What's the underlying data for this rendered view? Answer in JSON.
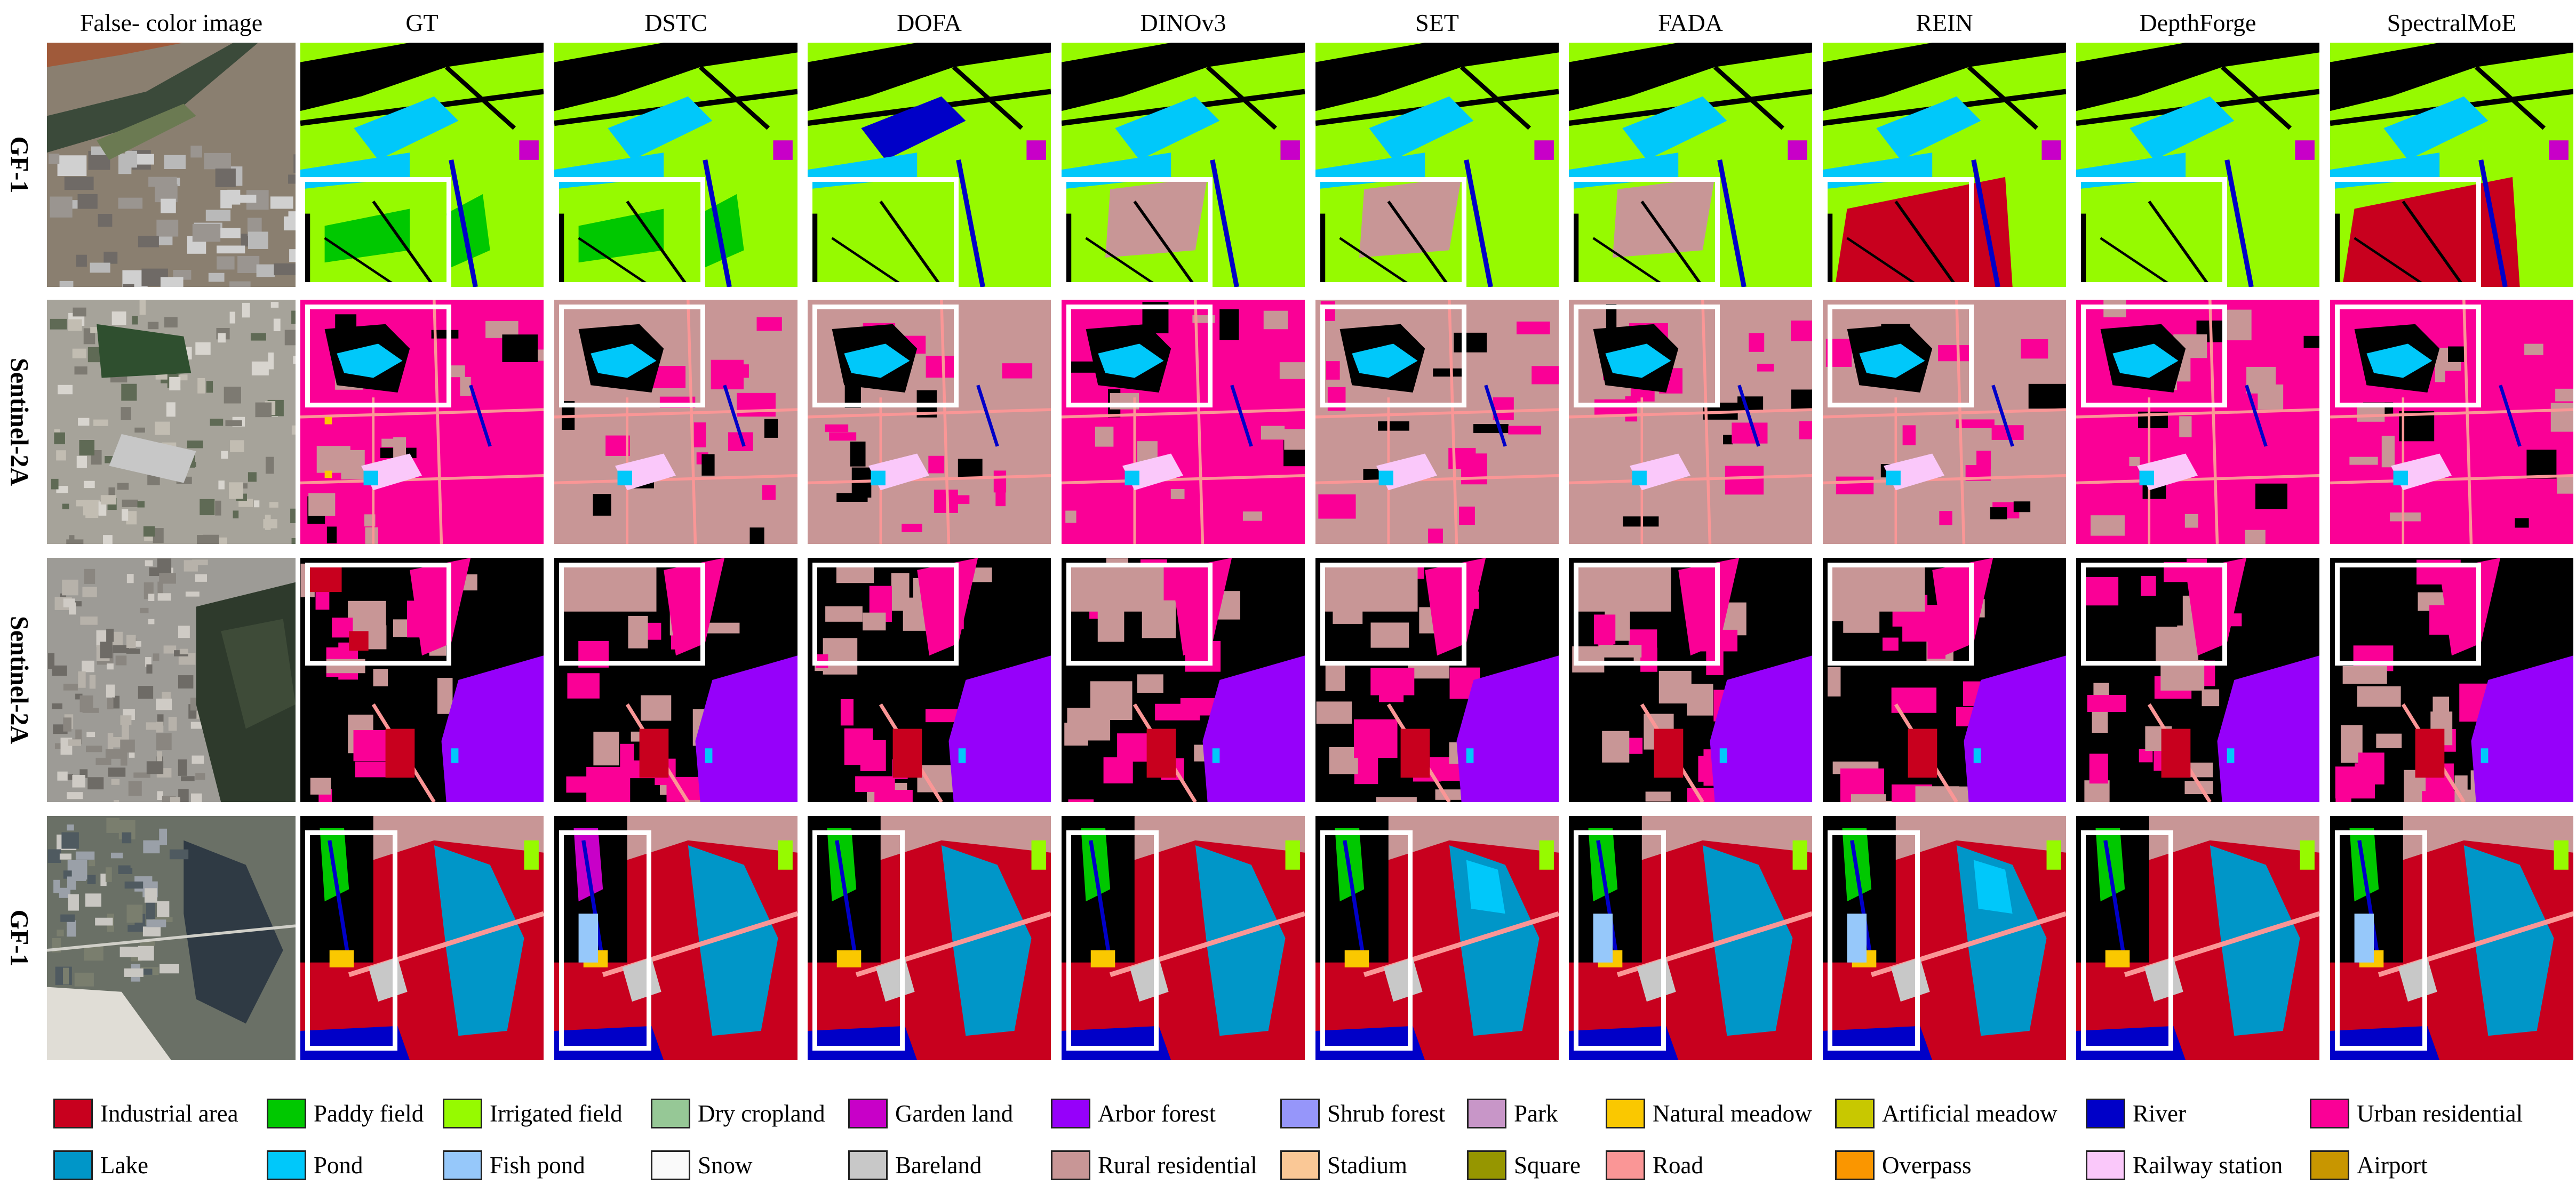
{
  "header": {
    "columns": [
      "False- color  image",
      "GT",
      "DSTC",
      "DOFA",
      "DINOv3",
      "SET",
      "FADA",
      "REIN",
      "DepthForge",
      "SpectralMoE"
    ]
  },
  "rows": [
    "GF-1",
    "Sentinel-2A",
    "Sentinel-2A",
    "GF-1"
  ],
  "legend": [
    {
      "label": "Industrial area",
      "color": "#c8001e"
    },
    {
      "label": "Paddy field",
      "color": "#00c800"
    },
    {
      "label": "Irrigated field",
      "color": "#96fa00"
    },
    {
      "label": "Dry cropland",
      "color": "#96c896"
    },
    {
      "label": "Garden land",
      "color": "#c800c8"
    },
    {
      "label": "Arbor forest",
      "color": "#9600fa"
    },
    {
      "label": "Shrub forest",
      "color": "#9696fa"
    },
    {
      "label": "Park",
      "color": "#c896c8"
    },
    {
      "label": "Natural meadow",
      "color": "#fac800"
    },
    {
      "label": "Artificial meadow",
      "color": "#c8c800"
    },
    {
      "label": "River",
      "color": "#0000c8"
    },
    {
      "label": "Urban residential",
      "color": "#fa0096"
    },
    {
      "label": "Lake",
      "color": "#0096c8"
    },
    {
      "label": "Pond",
      "color": "#00c8fa"
    },
    {
      "label": "Fish pond",
      "color": "#96c8fa"
    },
    {
      "label": "Snow",
      "color": "#fafafa"
    },
    {
      "label": "Bareland",
      "color": "#c8c8c8"
    },
    {
      "label": "Rural residential",
      "color": "#c89696"
    },
    {
      "label": "Stadium",
      "color": "#fac896"
    },
    {
      "label": "Square",
      "color": "#969600"
    },
    {
      "label": "Road",
      "color": "#fa9696"
    },
    {
      "label": "Overpass",
      "color": "#fa9600"
    },
    {
      "label": "Railway station",
      "color": "#fac8fa"
    },
    {
      "label": "Airport",
      "color": "#c89600"
    }
  ]
}
